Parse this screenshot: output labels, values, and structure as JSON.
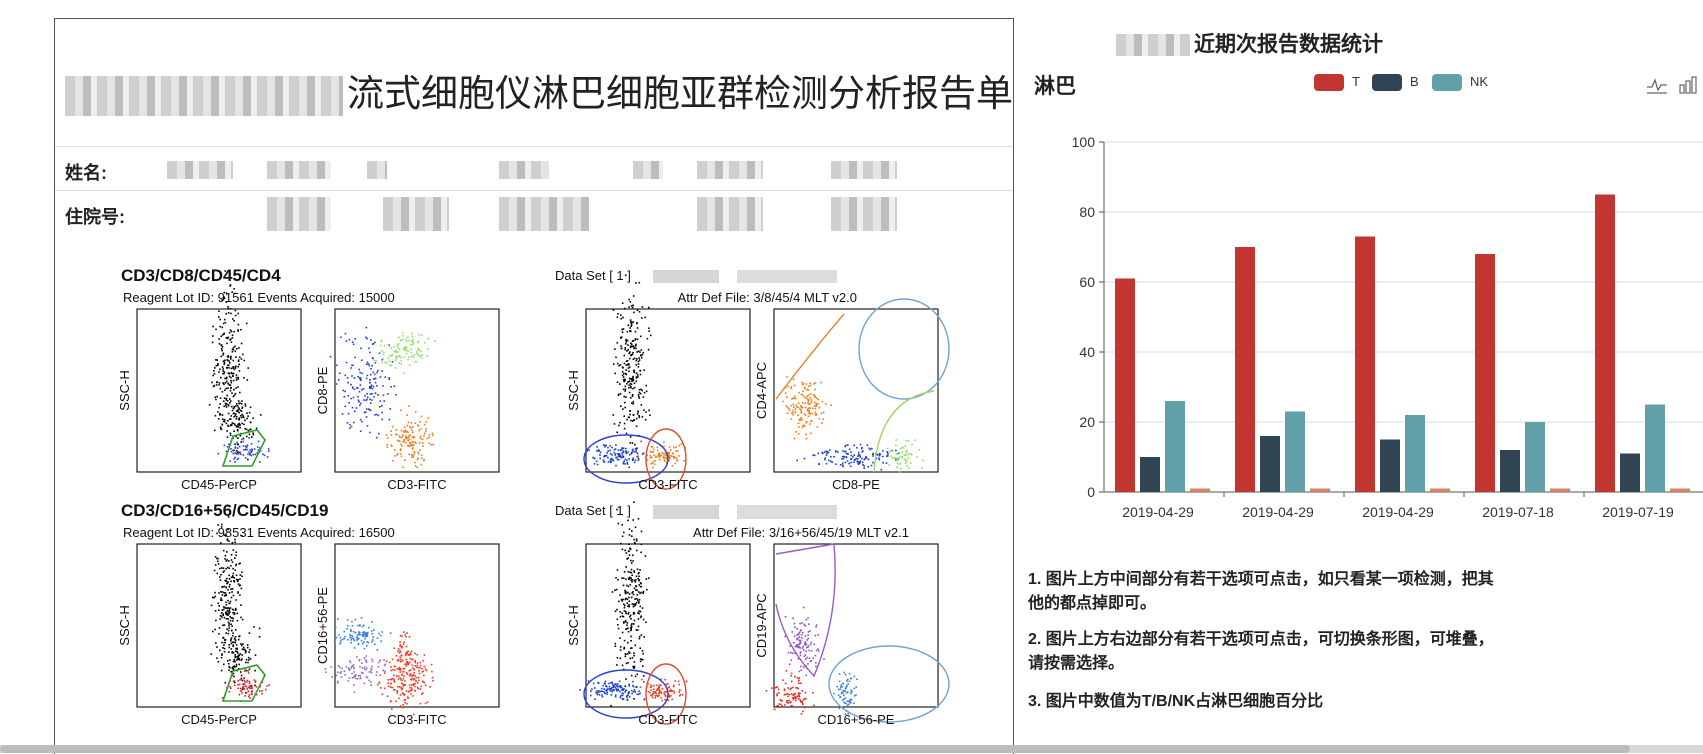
{
  "report": {
    "title": "流式细胞仪淋巴细胞亚群检测分析报告单",
    "name_label": "姓名:",
    "admission_label": "住院号:",
    "panel1": {
      "title": "CD3/CD8/CD45/CD4",
      "reagent": "Reagent Lot ID:  91561   Events Acquired:  15000",
      "dataset": "Data Set [ 1 ]",
      "attr": "Attr Def File:  3/8/45/4 MLT v2.0",
      "plots": [
        {
          "xlabel": "CD45-PerCP",
          "ylabel": "SSC-H"
        },
        {
          "xlabel": "CD3-FITC",
          "ylabel": "CD8-PE"
        },
        {
          "xlabel": "CD3-FITC",
          "ylabel": "SSC-H"
        },
        {
          "xlabel": "CD8-PE",
          "ylabel": "CD4-APC"
        }
      ]
    },
    "panel2": {
      "title": "CD3/CD16+56/CD45/CD19",
      "reagent": "Reagent Lot ID:  98531   Events Acquired:  16500",
      "dataset": "Data Set [ 1 ]",
      "attr": "Attr Def File:  3/16+56/45/19 MLT v2.1",
      "plots": [
        {
          "xlabel": "CD45-PerCP",
          "ylabel": "SSC-H"
        },
        {
          "xlabel": "CD3-FITC",
          "ylabel": "CD16+56-PE"
        },
        {
          "xlabel": "CD3-FITC",
          "ylabel": "SSC-H"
        },
        {
          "xlabel": "CD16+56-PE",
          "ylabel": "CD19-APC"
        }
      ]
    }
  },
  "stats": {
    "title": "近期次报告数据统计",
    "chart_label": "淋巴",
    "tools": [
      "line-chart-icon",
      "bar-chart-icon"
    ],
    "notes": [
      "1. 图片上方中间部分有若干选项可点击，如只看某一项检测，把其他的都点掉即可。",
      "2. 图片上方右边部分有若干选项可点击，可切换条形图，可堆叠，请按需选择。",
      "3. 图片中数值为T/B/NK占淋巴细胞百分比"
    ]
  },
  "colors": {
    "T": "#c23531",
    "B": "#2f4554",
    "NK": "#61a0a8",
    "extra": "#d48265"
  },
  "chart_data": {
    "type": "bar",
    "categories": [
      "2019-04-29",
      "2019-04-29",
      "2019-04-29",
      "2019-07-18",
      "2019-07-19"
    ],
    "series": [
      {
        "name": "T",
        "values": [
          61,
          70,
          73,
          68,
          85
        ]
      },
      {
        "name": "B",
        "values": [
          10,
          16,
          15,
          12,
          11
        ]
      },
      {
        "name": "NK",
        "values": [
          26,
          23,
          22,
          20,
          25
        ]
      },
      {
        "values": [
          1,
          1,
          1,
          1,
          1
        ]
      }
    ],
    "ylim": [
      0,
      100
    ],
    "yticks": [
      "0",
      "20",
      "40",
      "60",
      "80",
      "100"
    ],
    "grid": true,
    "legend": "top-center"
  }
}
